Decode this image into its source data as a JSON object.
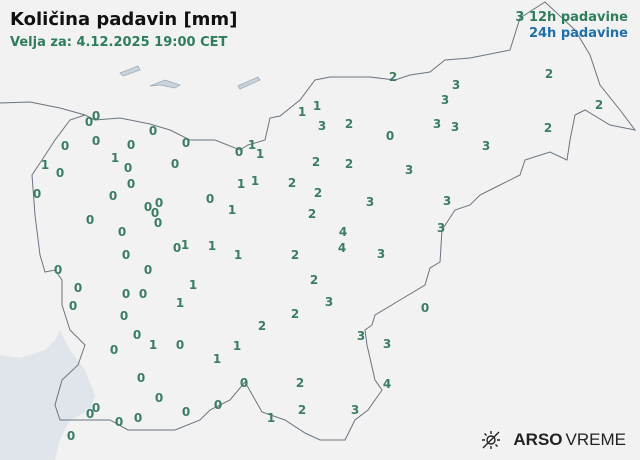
{
  "title": "Količina padavin [mm]",
  "valid": "Velja za: 4.12.2025 19:00 CET",
  "legend": {
    "sample": "3",
    "label12": "12h padavine",
    "label24": "24h padavine",
    "color12": "#2e7d5b",
    "color24": "#1f6fa8"
  },
  "logo": {
    "bold": "ARSO",
    "light": "VREME",
    "icon": "sun-icon"
  },
  "stations": [
    [
      393,
      77,
      2
    ],
    [
      456,
      85,
      3
    ],
    [
      549,
      74,
      2
    ],
    [
      445,
      100,
      3
    ],
    [
      599,
      105,
      2
    ],
    [
      302,
      112,
      1
    ],
    [
      317,
      106,
      1
    ],
    [
      322,
      126,
      3
    ],
    [
      349,
      124,
      2
    ],
    [
      390,
      136,
      0
    ],
    [
      437,
      124,
      3
    ],
    [
      455,
      127,
      3
    ],
    [
      548,
      128,
      2
    ],
    [
      486,
      146,
      3
    ],
    [
      96,
      116,
      0
    ],
    [
      89,
      122,
      0
    ],
    [
      153,
      131,
      0
    ],
    [
      65,
      146,
      0
    ],
    [
      96,
      141,
      0
    ],
    [
      131,
      145,
      0
    ],
    [
      186,
      143,
      0
    ],
    [
      239,
      152,
      0
    ],
    [
      252,
      145,
      1
    ],
    [
      260,
      154,
      1
    ],
    [
      45,
      165,
      1
    ],
    [
      60,
      173,
      0
    ],
    [
      115,
      158,
      1
    ],
    [
      128,
      168,
      0
    ],
    [
      175,
      164,
      0
    ],
    [
      316,
      162,
      2
    ],
    [
      349,
      164,
      2
    ],
    [
      409,
      170,
      3
    ],
    [
      37,
      194,
      0
    ],
    [
      113,
      196,
      0
    ],
    [
      131,
      184,
      0
    ],
    [
      241,
      184,
      1
    ],
    [
      255,
      181,
      1
    ],
    [
      292,
      183,
      2
    ],
    [
      318,
      193,
      2
    ],
    [
      210,
      199,
      0
    ],
    [
      232,
      210,
      1
    ],
    [
      370,
      202,
      3
    ],
    [
      447,
      201,
      3
    ],
    [
      148,
      207,
      0
    ],
    [
      159,
      203,
      0
    ],
    [
      155,
      213,
      0
    ],
    [
      158,
      223,
      0
    ],
    [
      312,
      214,
      2
    ],
    [
      90,
      220,
      0
    ],
    [
      122,
      232,
      0
    ],
    [
      343,
      232,
      4
    ],
    [
      441,
      228,
      3
    ],
    [
      177,
      248,
      0
    ],
    [
      185,
      245,
      1
    ],
    [
      212,
      246,
      1
    ],
    [
      238,
      255,
      1
    ],
    [
      295,
      255,
      2
    ],
    [
      342,
      248,
      4
    ],
    [
      381,
      254,
      3
    ],
    [
      126,
      255,
      0
    ],
    [
      148,
      270,
      0
    ],
    [
      58,
      270,
      0
    ],
    [
      78,
      288,
      0
    ],
    [
      73,
      306,
      0
    ],
    [
      126,
      294,
      0
    ],
    [
      143,
      294,
      0
    ],
    [
      193,
      285,
      1
    ],
    [
      314,
      280,
      2
    ],
    [
      124,
      316,
      0
    ],
    [
      180,
      303,
      1
    ],
    [
      329,
      302,
      3
    ],
    [
      295,
      314,
      2
    ],
    [
      425,
      308,
      0
    ],
    [
      137,
      335,
      0
    ],
    [
      262,
      326,
      2
    ],
    [
      361,
      336,
      3
    ],
    [
      114,
      350,
      0
    ],
    [
      153,
      345,
      1
    ],
    [
      180,
      345,
      0
    ],
    [
      237,
      346,
      1
    ],
    [
      387,
      344,
      3
    ],
    [
      217,
      359,
      1
    ],
    [
      141,
      378,
      0
    ],
    [
      244,
      383,
      0
    ],
    [
      300,
      383,
      2
    ],
    [
      387,
      384,
      4
    ],
    [
      159,
      398,
      0
    ],
    [
      96,
      408,
      0
    ],
    [
      90,
      414,
      0
    ],
    [
      186,
      412,
      0
    ],
    [
      218,
      405,
      0
    ],
    [
      302,
      410,
      2
    ],
    [
      355,
      410,
      3
    ],
    [
      138,
      418,
      0
    ],
    [
      119,
      422,
      0
    ],
    [
      271,
      418,
      1
    ],
    [
      71,
      436,
      0
    ]
  ]
}
